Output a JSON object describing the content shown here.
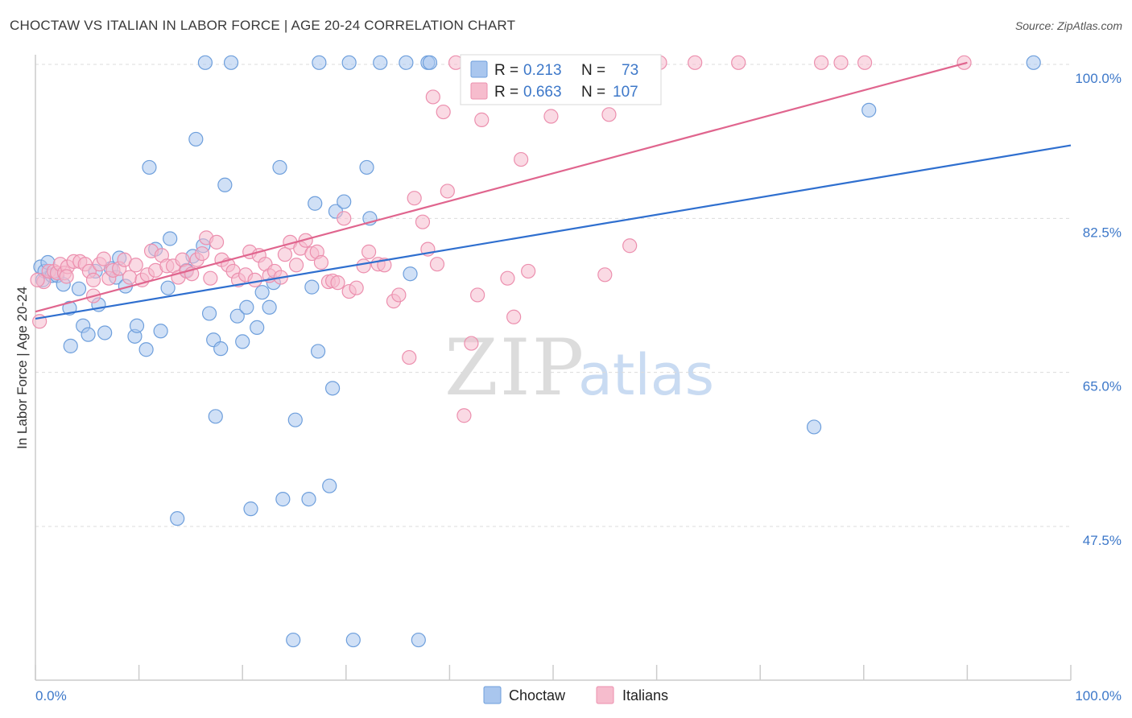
{
  "title": "CHOCTAW VS ITALIAN IN LABOR FORCE | AGE 20-24 CORRELATION CHART",
  "source": "Source: ZipAtlas.com",
  "watermark": {
    "part1": "ZIP",
    "part2": "atlas"
  },
  "legend": {
    "r_label": "R =",
    "n_label": "N =",
    "rows": [
      {
        "series": "Choctaw",
        "r": "0.213",
        "n": "73"
      },
      {
        "series": "Italians",
        "r": "0.663",
        "n": "107"
      }
    ]
  },
  "colors": {
    "choctaw_fill": "#a9c6ee",
    "choctaw_stroke": "#6e9fdc",
    "choctaw_line": "#2f6fcf",
    "italians_fill": "#f6bccd",
    "italians_stroke": "#ec8fae",
    "italians_line": "#e0658e",
    "tick_text": "#3d78c9",
    "grid": "#dcdcdc"
  },
  "chart_data": {
    "type": "scatter",
    "title": "CHOCTAW VS ITALIAN IN LABOR FORCE | AGE 20-24 CORRELATION CHART",
    "xlabel": "",
    "ylabel": "In Labor Force | Age 20-24",
    "xlim": [
      0,
      100
    ],
    "ylim": [
      31.5,
      102
    ],
    "x_tick_labels": [
      "0.0%",
      "100.0%"
    ],
    "y_ticks": [
      {
        "value": 100,
        "label": "100.0%"
      },
      {
        "value": 82.5,
        "label": "82.5%"
      },
      {
        "value": 65,
        "label": "65.0%"
      },
      {
        "value": 47.5,
        "label": "47.5%"
      }
    ],
    "grid": true,
    "legend_position": "top-center",
    "series": [
      {
        "name": "Choctaw",
        "r": 0.213,
        "n": 73,
        "trend": {
          "x": [
            0,
            100
          ],
          "y": [
            71.1,
            90.8
          ]
        },
        "points": [
          [
            0.5,
            77
          ],
          [
            0.7,
            75.5
          ],
          [
            0.9,
            76.5
          ],
          [
            1.2,
            77.5
          ],
          [
            1.6,
            76
          ],
          [
            2.1,
            76
          ],
          [
            2.7,
            75
          ],
          [
            3.3,
            72.3
          ],
          [
            4.2,
            74.5
          ],
          [
            4.6,
            70.3
          ],
          [
            5.1,
            69.3
          ],
          [
            3.4,
            68
          ],
          [
            6.1,
            72.7
          ],
          [
            5.8,
            76.5
          ],
          [
            6.7,
            69.5
          ],
          [
            7.3,
            76.8
          ],
          [
            7.8,
            75.8
          ],
          [
            8.1,
            78
          ],
          [
            8.7,
            74.8
          ],
          [
            9.6,
            69.1
          ],
          [
            9.8,
            70.3
          ],
          [
            10.7,
            67.6
          ],
          [
            11.0,
            88.3
          ],
          [
            11.6,
            79
          ],
          [
            12.1,
            69.7
          ],
          [
            12.8,
            74.6
          ],
          [
            13.0,
            80.2
          ],
          [
            13.7,
            48.4
          ],
          [
            14.6,
            76.6
          ],
          [
            15.2,
            78.2
          ],
          [
            15.5,
            91.5
          ],
          [
            16.2,
            79.4
          ],
          [
            16.8,
            71.7
          ],
          [
            17.2,
            68.7
          ],
          [
            17.4,
            60
          ],
          [
            17.9,
            67.7
          ],
          [
            18.3,
            86.3
          ],
          [
            18.9,
            100.2
          ],
          [
            19.5,
            71.4
          ],
          [
            20.0,
            68.5
          ],
          [
            20.4,
            72.4
          ],
          [
            20.8,
            49.5
          ],
          [
            21.4,
            70.1
          ],
          [
            21.9,
            74.1
          ],
          [
            22.6,
            72.4
          ],
          [
            23.0,
            75.2
          ],
          [
            23.6,
            88.3
          ],
          [
            23.9,
            50.6
          ],
          [
            25.1,
            59.6
          ],
          [
            26.4,
            50.6
          ],
          [
            26.7,
            74.7
          ],
          [
            27.0,
            84.2
          ],
          [
            27.3,
            67.4
          ],
          [
            28.4,
            52.1
          ],
          [
            28.7,
            63.2
          ],
          [
            29.0,
            83.3
          ],
          [
            29.8,
            84.4
          ],
          [
            30.3,
            100.2
          ],
          [
            32.0,
            88.3
          ],
          [
            32.3,
            82.5
          ],
          [
            33.3,
            100.2
          ],
          [
            35.8,
            100.2
          ],
          [
            36.2,
            76.2
          ],
          [
            37.9,
            100.2
          ],
          [
            38.1,
            100.2
          ],
          [
            75.2,
            58.8
          ],
          [
            80.5,
            94.8
          ],
          [
            96.4,
            100.2
          ],
          [
            16.4,
            100.2
          ],
          [
            24.9,
            34.6
          ],
          [
            30.7,
            34.6
          ],
          [
            37.0,
            34.6
          ],
          [
            27.4,
            100.2
          ]
        ]
      },
      {
        "name": "Italians",
        "r": 0.663,
        "n": 107,
        "trend": {
          "x": [
            0,
            90
          ],
          "y": [
            71.9,
            100.2
          ]
        },
        "points": [
          [
            0.4,
            70.8
          ],
          [
            0.8,
            75.3
          ],
          [
            1.3,
            76.5
          ],
          [
            1.8,
            76.5
          ],
          [
            2.1,
            76.3
          ],
          [
            2.4,
            77.3
          ],
          [
            2.8,
            76.3
          ],
          [
            3.1,
            77
          ],
          [
            3.7,
            77.6
          ],
          [
            4.3,
            77.6
          ],
          [
            4.8,
            77.3
          ],
          [
            5.2,
            76.5
          ],
          [
            5.6,
            73.7
          ],
          [
            6.2,
            77.3
          ],
          [
            6.6,
            77.9
          ],
          [
            7.1,
            75.7
          ],
          [
            7.5,
            76.6
          ],
          [
            8.1,
            76.8
          ],
          [
            8.6,
            77.8
          ],
          [
            9.1,
            75.8
          ],
          [
            9.7,
            77.2
          ],
          [
            10.3,
            75.5
          ],
          [
            10.8,
            76.1
          ],
          [
            11.2,
            78.8
          ],
          [
            11.6,
            76.6
          ],
          [
            12.2,
            78.3
          ],
          [
            12.7,
            77.1
          ],
          [
            13.3,
            77.1
          ],
          [
            13.8,
            75.8
          ],
          [
            14.2,
            77.8
          ],
          [
            14.6,
            76.5
          ],
          [
            15.1,
            76.2
          ],
          [
            15.6,
            77.8
          ],
          [
            16.1,
            78.5
          ],
          [
            16.5,
            80.3
          ],
          [
            16.9,
            75.7
          ],
          [
            17.5,
            79.8
          ],
          [
            18.0,
            77.8
          ],
          [
            18.6,
            77.2
          ],
          [
            19.1,
            76.5
          ],
          [
            19.6,
            75.5
          ],
          [
            20.3,
            76.1
          ],
          [
            20.7,
            78.7
          ],
          [
            21.2,
            75.5
          ],
          [
            21.6,
            78.3
          ],
          [
            22.2,
            77.3
          ],
          [
            22.6,
            76
          ],
          [
            23.1,
            76.5
          ],
          [
            23.7,
            75.8
          ],
          [
            24.1,
            78.4
          ],
          [
            24.6,
            79.8
          ],
          [
            25.2,
            77.2
          ],
          [
            25.6,
            79.1
          ],
          [
            26.1,
            80
          ],
          [
            26.7,
            78.5
          ],
          [
            27.2,
            78.7
          ],
          [
            27.6,
            77.5
          ],
          [
            28.3,
            75.3
          ],
          [
            28.7,
            75.4
          ],
          [
            29.2,
            75.2
          ],
          [
            29.8,
            82.5
          ],
          [
            30.3,
            74.2
          ],
          [
            31.0,
            74.6
          ],
          [
            31.7,
            77.1
          ],
          [
            32.2,
            78.7
          ],
          [
            33.1,
            77.3
          ],
          [
            33.7,
            77.2
          ],
          [
            34.6,
            73.1
          ],
          [
            35.1,
            73.8
          ],
          [
            36.1,
            66.7
          ],
          [
            36.6,
            84.8
          ],
          [
            37.4,
            82.1
          ],
          [
            37.9,
            79
          ],
          [
            38.4,
            96.3
          ],
          [
            38.8,
            77.3
          ],
          [
            39.4,
            94.6
          ],
          [
            39.8,
            85.6
          ],
          [
            40.6,
            100.2
          ],
          [
            41.4,
            60.1
          ],
          [
            42.1,
            68.3
          ],
          [
            42.7,
            73.8
          ],
          [
            43.1,
            93.7
          ],
          [
            44.5,
            96.6
          ],
          [
            45.6,
            75.7
          ],
          [
            46.2,
            71.3
          ],
          [
            46.9,
            89.2
          ],
          [
            47.6,
            76.5
          ],
          [
            48.8,
            100.2
          ],
          [
            49.8,
            94.1
          ],
          [
            51.3,
            100.2
          ],
          [
            52.4,
            100.2
          ],
          [
            55.6,
            100.2
          ],
          [
            55.0,
            76.1
          ],
          [
            55.4,
            94.3
          ],
          [
            57.4,
            79.4
          ],
          [
            60.3,
            100.2
          ],
          [
            63.7,
            100.2
          ],
          [
            67.9,
            100.2
          ],
          [
            75.9,
            100.2
          ],
          [
            77.8,
            100.2
          ],
          [
            80.1,
            100.2
          ],
          [
            89.7,
            100.2
          ],
          [
            0.2,
            75.5
          ],
          [
            3.0,
            75.9
          ],
          [
            5.6,
            75.5
          ],
          [
            49.0,
            100.2
          ],
          [
            43.5,
            100.2
          ]
        ]
      }
    ]
  }
}
